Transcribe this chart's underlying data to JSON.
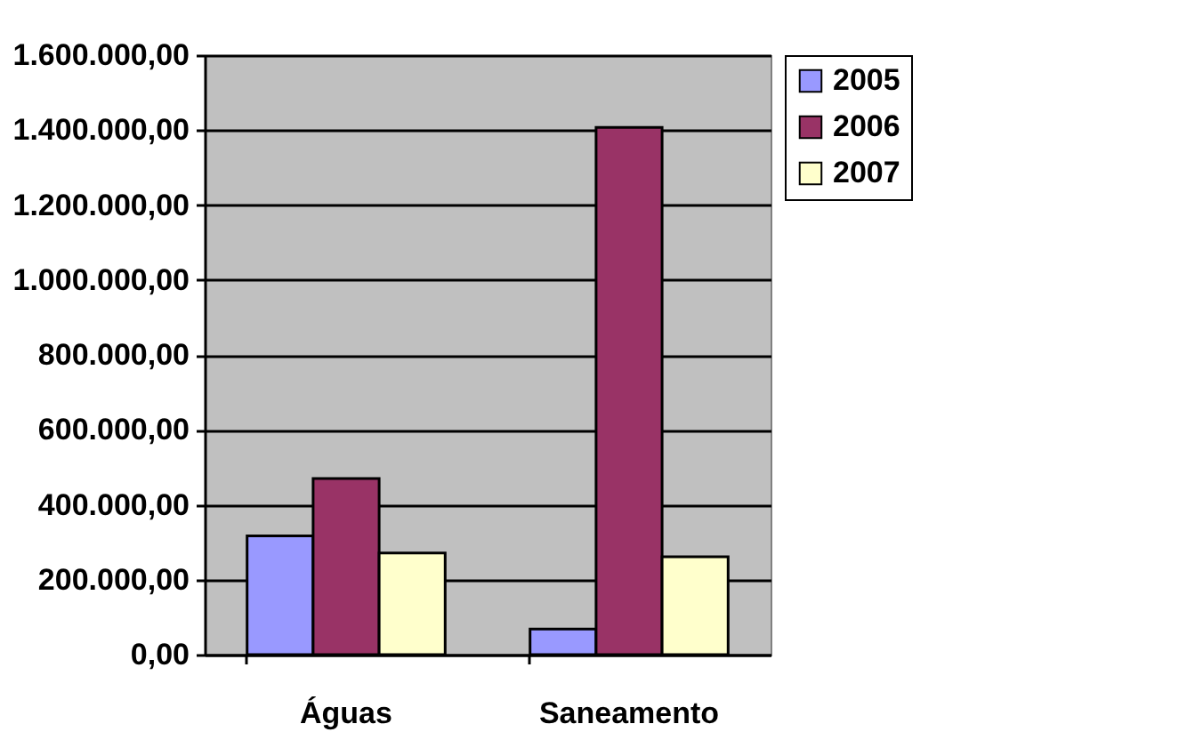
{
  "chart_data": {
    "type": "bar",
    "categories": [
      "Águas",
      "Saneamento"
    ],
    "series": [
      {
        "name": "2005",
        "color": "#9999ff",
        "values": [
          317000,
          68000
        ]
      },
      {
        "name": "2006",
        "color": "#993366",
        "values": [
          470000,
          1407000
        ]
      },
      {
        "name": "2007",
        "color": "#ffffcc",
        "values": [
          271000,
          261000
        ]
      }
    ],
    "ylim": [
      0,
      1600000
    ],
    "yticks": [
      {
        "value": 0,
        "label": "0,00"
      },
      {
        "value": 200000,
        "label": "200.000,00"
      },
      {
        "value": 400000,
        "label": "400.000,00"
      },
      {
        "value": 600000,
        "label": "600.000,00"
      },
      {
        "value": 800000,
        "label": "800.000,00"
      },
      {
        "value": 1000000,
        "label": "1.000.000,00"
      },
      {
        "value": 1200000,
        "label": "1.200.000,00"
      },
      {
        "value": 1400000,
        "label": "1.400.000,00"
      },
      {
        "value": 1600000,
        "label": "1.600.000,00"
      }
    ],
    "grid": "y",
    "legend": "right"
  }
}
